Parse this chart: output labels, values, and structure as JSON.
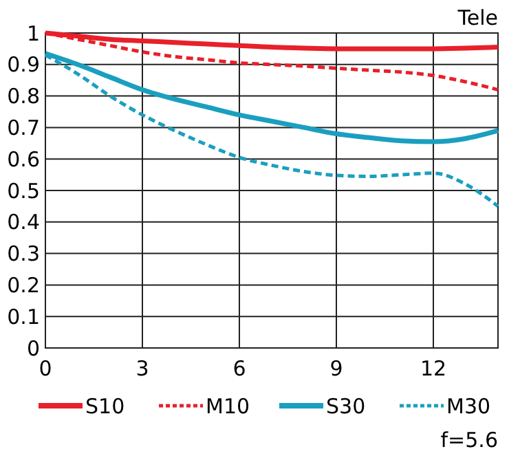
{
  "chart_data": {
    "type": "line",
    "title": "Tele",
    "annotations": [
      "f=5.6"
    ],
    "x": [
      0,
      1,
      2,
      3,
      4,
      5,
      6,
      7,
      8,
      9,
      10,
      11,
      12,
      13,
      14
    ],
    "xlim": [
      0,
      14
    ],
    "xticks": [
      0,
      3,
      6,
      9,
      12
    ],
    "ylim": [
      0,
      1
    ],
    "yticks": [
      0,
      0.1,
      0.2,
      0.3,
      0.4,
      0.5,
      0.6,
      0.7,
      0.8,
      0.9,
      1
    ],
    "grid": true,
    "legend": "bottom",
    "marker": "none",
    "series": [
      {
        "name": "S10",
        "color": "#e8202a",
        "line_style": "solid",
        "values": [
          1,
          0.99,
          0.98,
          0.975,
          0.97,
          0.965,
          0.96,
          0.955,
          0.952,
          0.95,
          0.95,
          0.95,
          0.95,
          0.952,
          0.955
        ]
      },
      {
        "name": "M10",
        "color": "#e8202a",
        "line_style": "dashed",
        "values": [
          1,
          0.98,
          0.96,
          0.94,
          0.925,
          0.915,
          0.905,
          0.9,
          0.895,
          0.888,
          0.882,
          0.876,
          0.865,
          0.845,
          0.82
        ]
      },
      {
        "name": "S30",
        "color": "#1a9fc0",
        "line_style": "solid",
        "values": [
          0.935,
          0.9,
          0.86,
          0.82,
          0.79,
          0.765,
          0.74,
          0.72,
          0.7,
          0.68,
          0.668,
          0.658,
          0.655,
          0.665,
          0.69
        ]
      },
      {
        "name": "M30",
        "color": "#1a9fc0",
        "line_style": "dashed",
        "values": [
          0.93,
          0.87,
          0.8,
          0.74,
          0.69,
          0.645,
          0.605,
          0.58,
          0.56,
          0.548,
          0.545,
          0.55,
          0.555,
          0.52,
          0.45
        ]
      }
    ]
  }
}
